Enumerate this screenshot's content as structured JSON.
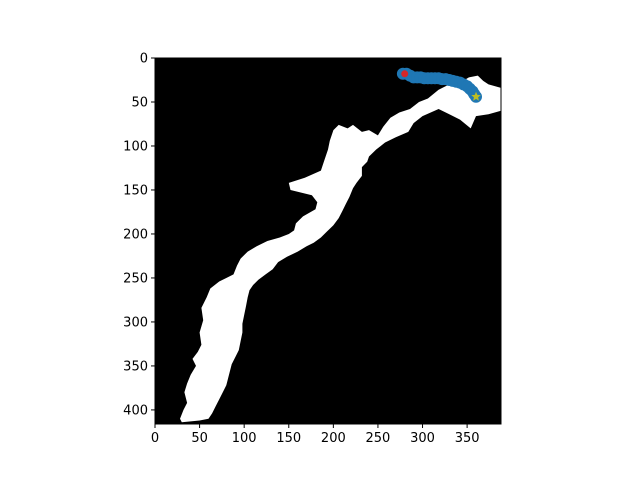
{
  "chart_data": {
    "type": "scatter",
    "title": "",
    "xlabel": "",
    "ylabel": "",
    "xlim": [
      0,
      388
    ],
    "ylim": [
      416,
      0
    ],
    "y_inverted": true,
    "grid": false,
    "legend": "none",
    "x_ticks": [
      0,
      50,
      100,
      150,
      200,
      250,
      300,
      350
    ],
    "y_ticks": [
      0,
      50,
      100,
      150,
      200,
      250,
      300,
      350,
      400
    ],
    "x_tick_labels": [
      "0",
      "50",
      "100",
      "150",
      "200",
      "250",
      "300",
      "350"
    ],
    "y_tick_labels": [
      "0",
      "50",
      "100",
      "150",
      "200",
      "250",
      "300",
      "350",
      "400"
    ],
    "background_image": {
      "description_kind": "binary mask",
      "foreground_color": "#ffffff",
      "background_color": "#000000",
      "region_outline": [
        [
          28,
          410
        ],
        [
          32,
          400
        ],
        [
          36,
          392
        ],
        [
          33,
          380
        ],
        [
          36,
          370
        ],
        [
          40,
          360
        ],
        [
          46,
          350
        ],
        [
          42,
          342
        ],
        [
          48,
          334
        ],
        [
          52,
          326
        ],
        [
          50,
          312
        ],
        [
          54,
          298
        ],
        [
          52,
          284
        ],
        [
          58,
          272
        ],
        [
          62,
          262
        ],
        [
          72,
          254
        ],
        [
          80,
          250
        ],
        [
          88,
          246
        ],
        [
          92,
          236
        ],
        [
          96,
          228
        ],
        [
          104,
          220
        ],
        [
          114,
          214
        ],
        [
          126,
          208
        ],
        [
          140,
          204
        ],
        [
          150,
          200
        ],
        [
          156,
          196
        ],
        [
          158,
          188
        ],
        [
          166,
          180
        ],
        [
          180,
          172
        ],
        [
          182,
          164
        ],
        [
          176,
          156
        ],
        [
          152,
          150
        ],
        [
          150,
          142
        ],
        [
          168,
          136
        ],
        [
          186,
          128
        ],
        [
          190,
          116
        ],
        [
          194,
          104
        ],
        [
          196,
          94
        ],
        [
          200,
          82
        ],
        [
          206,
          76
        ],
        [
          216,
          80
        ],
        [
          222,
          76
        ],
        [
          232,
          84
        ],
        [
          240,
          82
        ],
        [
          250,
          88
        ],
        [
          256,
          78
        ],
        [
          264,
          68
        ],
        [
          274,
          62
        ],
        [
          286,
          58
        ],
        [
          296,
          50
        ],
        [
          306,
          46
        ],
        [
          318,
          36
        ],
        [
          330,
          30
        ],
        [
          342,
          28
        ],
        [
          352,
          22
        ],
        [
          362,
          20
        ],
        [
          368,
          26
        ],
        [
          374,
          30
        ],
        [
          388,
          34
        ],
        [
          388,
          60
        ],
        [
          374,
          64
        ],
        [
          360,
          66
        ],
        [
          354,
          80
        ],
        [
          342,
          70
        ],
        [
          330,
          64
        ],
        [
          318,
          58
        ],
        [
          300,
          66
        ],
        [
          290,
          74
        ],
        [
          284,
          84
        ],
        [
          270,
          90
        ],
        [
          258,
          96
        ],
        [
          248,
          104
        ],
        [
          240,
          112
        ],
        [
          238,
          118
        ],
        [
          232,
          124
        ],
        [
          232,
          134
        ],
        [
          226,
          142
        ],
        [
          222,
          148
        ],
        [
          218,
          158
        ],
        [
          214,
          166
        ],
        [
          210,
          174
        ],
        [
          206,
          182
        ],
        [
          200,
          190
        ],
        [
          192,
          198
        ],
        [
          186,
          204
        ],
        [
          178,
          210
        ],
        [
          170,
          214
        ],
        [
          160,
          220
        ],
        [
          148,
          226
        ],
        [
          138,
          232
        ],
        [
          132,
          240
        ],
        [
          124,
          246
        ],
        [
          116,
          252
        ],
        [
          110,
          258
        ],
        [
          106,
          264
        ],
        [
          104,
          272
        ],
        [
          102,
          282
        ],
        [
          100,
          292
        ],
        [
          98,
          302
        ],
        [
          98,
          312
        ],
        [
          96,
          322
        ],
        [
          94,
          332
        ],
        [
          90,
          340
        ],
        [
          86,
          348
        ],
        [
          84,
          356
        ],
        [
          82,
          364
        ],
        [
          80,
          372
        ],
        [
          76,
          380
        ],
        [
          72,
          388
        ],
        [
          68,
          396
        ],
        [
          64,
          404
        ],
        [
          60,
          410
        ],
        [
          50,
          412
        ],
        [
          40,
          413
        ],
        [
          30,
          414
        ]
      ]
    },
    "series": [
      {
        "marker": "circle",
        "color": "#1f77b4",
        "x": [
          278,
          282,
          286,
          290,
          294,
          298,
          302,
          306,
          310,
          314,
          318,
          322,
          326,
          330,
          334,
          338,
          342,
          346,
          350,
          353,
          356,
          358,
          360
        ],
        "y": [
          18,
          18,
          20,
          22,
          22,
          22,
          23,
          23,
          23,
          23,
          23,
          24,
          24,
          25,
          26,
          27,
          28,
          30,
          32,
          35,
          38,
          41,
          44
        ]
      }
    ],
    "markers": [
      {
        "kind": "start",
        "shape": "circle",
        "color": "#d62728",
        "x": 280,
        "y": 18
      },
      {
        "kind": "end",
        "shape": "star",
        "color": "#bcbd22",
        "x": 360,
        "y": 44
      }
    ]
  }
}
